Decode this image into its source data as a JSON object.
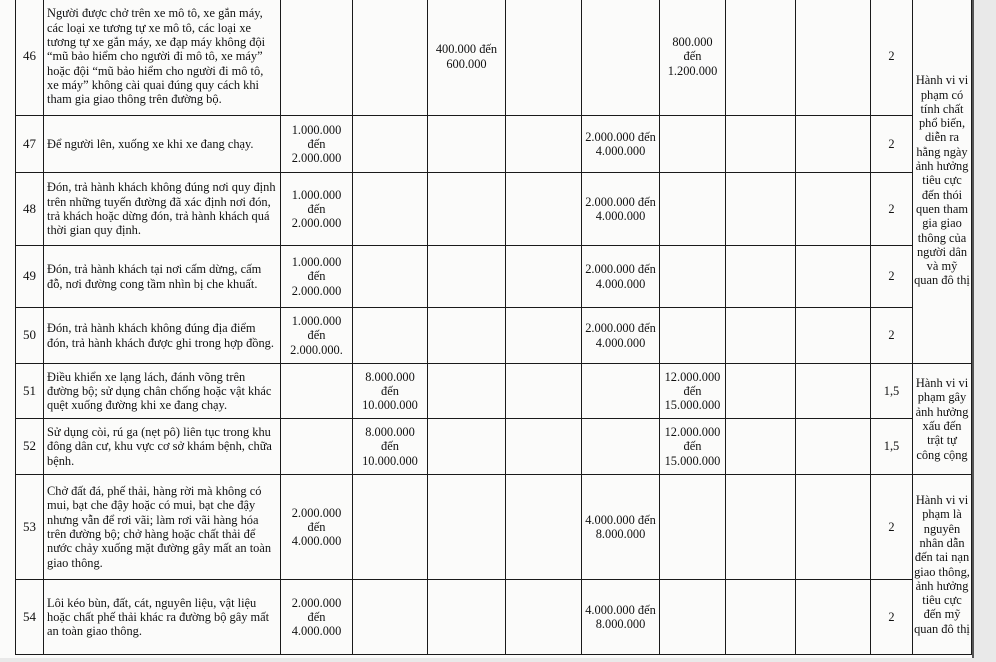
{
  "rows": [
    {
      "stt": "46",
      "desc": "Người được chở trên xe mô tô, xe gắn máy, các loại xe tương tự xe mô tô, các loại xe tương tự xe gắn máy, xe đạp máy không đội “mũ bảo hiểm cho người đi mô tô, xe máy” hoặc đội “mũ bảo hiểm cho người đi mô tô, xe máy” không cài quai đúng quy cách khi tham gia giao thông trên đường bộ.",
      "cells": [
        "",
        "",
        "400.000 đến 600.000",
        "",
        "",
        "800.000 đến 1.200.000",
        "",
        ""
      ],
      "coef": "2"
    },
    {
      "stt": "47",
      "desc": "Để người lên, xuống xe khi xe đang chạy.",
      "cells": [
        "1.000.000 đến 2.000.000",
        "",
        "",
        "",
        "2.000.000 đến 4.000.000",
        "",
        "",
        ""
      ],
      "coef": "2"
    },
    {
      "stt": "48",
      "desc": "Đón, trả hành khách không đúng nơi quy định trên những tuyến đường đã xác định nơi đón, trả khách hoặc dừng đón, trả hành khách quá thời gian quy định.",
      "cells": [
        "1.000.000 đến 2.000.000",
        "",
        "",
        "",
        "2.000.000 đến 4.000.000",
        "",
        "",
        ""
      ],
      "coef": "2"
    },
    {
      "stt": "49",
      "desc": "Đón, trả hành khách tại nơi cấm dừng, cấm đỗ, nơi đường cong tầm nhìn bị che khuất.",
      "cells": [
        "1.000.000 đến 2.000.000",
        "",
        "",
        "",
        "2.000.000 đến 4.000.000",
        "",
        "",
        ""
      ],
      "coef": "2"
    },
    {
      "stt": "50",
      "desc": "Đón, trả hành khách không đúng địa điểm đón, trả hành khách được ghi trong hợp đồng.",
      "cells": [
        "1.000.000 đến 2.000.000.",
        "",
        "",
        "",
        "2.000.000 đến 4.000.000",
        "",
        "",
        ""
      ],
      "coef": "2"
    },
    {
      "stt": "51",
      "desc": "Điều khiển xe lạng lách, đánh võng trên đường bộ; sử dụng chân chống hoặc vật khác quệt xuống đường khi xe đang chạy.",
      "cells": [
        "",
        "8.000.000 đến 10.000.000",
        "",
        "",
        "",
        "12.000.000 đến 15.000.000",
        "",
        ""
      ],
      "coef": "1,5"
    },
    {
      "stt": "52",
      "desc": "Sử dụng còi, rú ga (nẹt pô) liên tục trong khu đông dân cư, khu vực cơ sở khám bệnh, chữa bệnh.",
      "cells": [
        "",
        "8.000.000 đến 10.000.000",
        "",
        "",
        "",
        "12.000.000 đến 15.000.000",
        "",
        ""
      ],
      "coef": "1,5"
    },
    {
      "stt": "53",
      "desc": "Chở đất đá, phế thải, hàng rời mà không có mui, bạt che đậy hoặc có mui, bạt che đậy nhưng vẫn để rơi vãi; làm rơi vãi hàng hóa trên đường bộ; chở hàng hoặc chất thải để nước chảy xuống mặt đường gây mất an toàn giao thông.",
      "cells": [
        "2.000.000 đến 4.000.000",
        "",
        "",
        "",
        "4.000.000 đến 8.000.000",
        "",
        "",
        ""
      ],
      "coef": "2"
    },
    {
      "stt": "54",
      "desc": "Lôi kéo bùn, đất, cát, nguyên liệu, vật liệu hoặc chất phế thải khác ra đường bộ gây mất an toàn giao thông.",
      "cells": [
        "2.000.000 đến 4.000.000",
        "",
        "",
        "",
        "4.000.000 đến 8.000.000",
        "",
        "",
        ""
      ],
      "coef": "2"
    }
  ],
  "notes": [
    "Hành vi vi phạm có tính chất phổ biến, diễn ra hằng ngày ảnh hưởng tiêu cực đến thói quen tham gia giao thông của người dân và mỹ quan đô thị",
    "Hành vi vi phạm gây ảnh hưởng xấu đến trật tự công cộng",
    "Hành vi vi phạm là nguyên nhân dẫn đến tai nạn giao thông, ảnh hưởng tiêu cực đến mỹ quan đô thị"
  ]
}
